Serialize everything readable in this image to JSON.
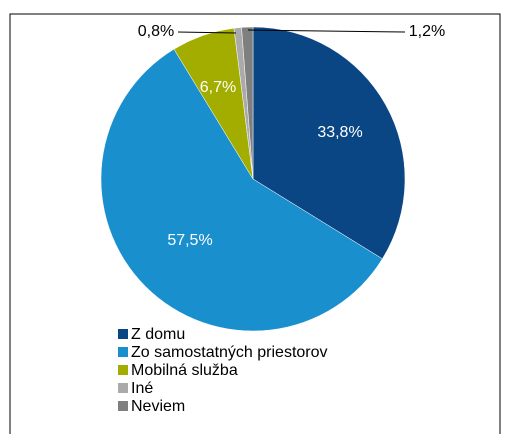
{
  "chart_data": {
    "type": "pie",
    "categories": [
      "Z domu",
      "Zo samostatných priestorov",
      "Mobilná služba",
      "Iné",
      "Neviem"
    ],
    "values": [
      33.8,
      57.5,
      6.7,
      0.8,
      1.2
    ],
    "value_labels": [
      "33,8%",
      "57,5%",
      "6,7%",
      "0,8%",
      "1,2%"
    ],
    "colors": [
      "#0a4584",
      "#1a8fce",
      "#a3ad00",
      "#aaaaaa",
      "#7f7f7f"
    ],
    "legend": "bottom-left"
  }
}
